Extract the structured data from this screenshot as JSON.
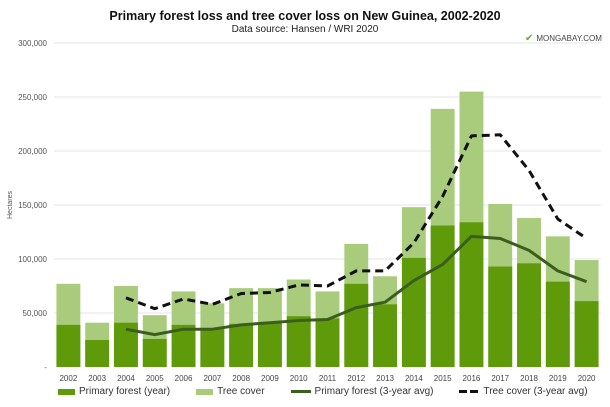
{
  "chart_data": {
    "type": "bar",
    "title": "Primary forest loss and tree cover loss on New Guinea, 2002-2020",
    "subtitle": "Data source: Hansen / WRI 2020",
    "source_logo": "MONGABAY.COM",
    "ylabel": "Hectares",
    "xlabel": "",
    "ylim": [
      0,
      300000
    ],
    "yticks": [
      0,
      50000,
      100000,
      150000,
      200000,
      250000,
      300000
    ],
    "ytick_labels": [
      "-",
      "50,000",
      "100,000",
      "150,000",
      "200,000",
      "250,000",
      "300,000"
    ],
    "grid": true,
    "legend_position": "bottom",
    "categories": [
      "2002",
      "2003",
      "2004",
      "2005",
      "2006",
      "2007",
      "2008",
      "2009",
      "2010",
      "2011",
      "2012",
      "2013",
      "2014",
      "2015",
      "2016",
      "2017",
      "2018",
      "2019",
      "2020"
    ],
    "series": [
      {
        "name": "Primary forest (year)",
        "kind": "bar",
        "color": "#5f9a0a",
        "values": [
          39000,
          25000,
          41000,
          26000,
          39000,
          36000,
          40000,
          41000,
          47000,
          45000,
          77000,
          58000,
          101000,
          131000,
          134000,
          93000,
          96000,
          79000,
          61000
        ]
      },
      {
        "name": "Tree cover",
        "kind": "bar",
        "color": "#a8cc7c",
        "values": [
          77000,
          41000,
          75000,
          48000,
          70000,
          59000,
          73000,
          73000,
          81000,
          70000,
          114000,
          84000,
          148000,
          239000,
          255000,
          151000,
          138000,
          121000,
          99000
        ]
      },
      {
        "name": "Primary forest (3-year avg)",
        "kind": "line",
        "color": "#3b5e1e",
        "values": [
          null,
          null,
          35000,
          30000,
          35000,
          35000,
          39000,
          41000,
          43000,
          44000,
          55000,
          60000,
          80000,
          95000,
          121000,
          119000,
          108000,
          89000,
          79000
        ]
      },
      {
        "name": "Tree cover (3-year avg)",
        "kind": "dashed-line",
        "color": "#111111",
        "values": [
          null,
          null,
          64000,
          54000,
          63000,
          58000,
          68000,
          69000,
          76000,
          75000,
          89000,
          89000,
          115000,
          158000,
          214000,
          215000,
          182000,
          137000,
          119000
        ]
      }
    ]
  }
}
